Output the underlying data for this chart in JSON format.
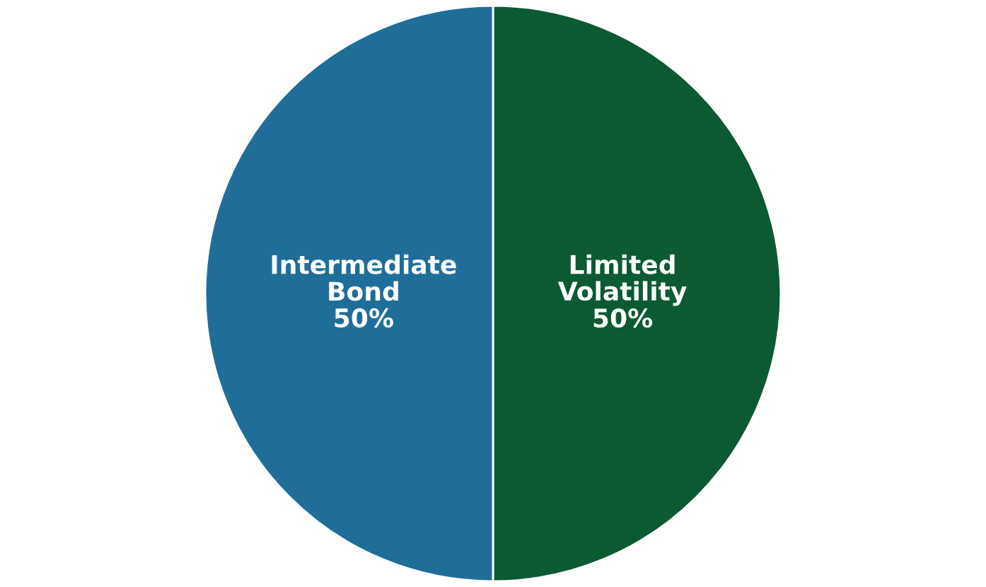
{
  "chart_data": {
    "type": "pie",
    "categories": [
      "Limited Volatility",
      "Intermediate Bond"
    ],
    "values": [
      50,
      50
    ],
    "colors": [
      "#0b5a32",
      "#1f6e99"
    ],
    "value_labels": [
      "50%",
      "50%"
    ],
    "legend": false
  }
}
